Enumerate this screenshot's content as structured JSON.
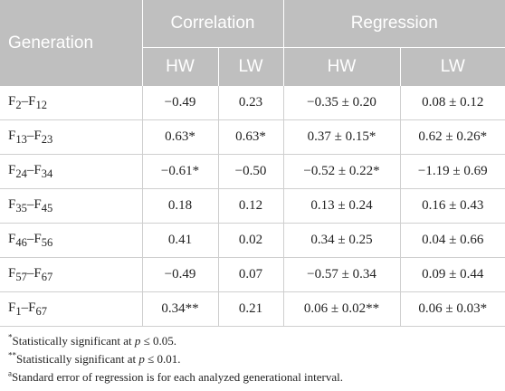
{
  "headers": {
    "generation": "Generation",
    "correlation": "Correlation",
    "regression": "Regression",
    "sub": [
      "HW",
      "LW",
      "HW",
      "LW"
    ]
  },
  "rows": [
    {
      "gen_base1": "F",
      "gen_sub1": "2",
      "dash": "–",
      "gen_base2": "F",
      "gen_sub2": "12",
      "cells": [
        "−0.49",
        "0.23",
        "−0.35 ± 0.20",
        "0.08 ± 0.12"
      ]
    },
    {
      "gen_base1": "F",
      "gen_sub1": "13",
      "dash": "–",
      "gen_base2": "F",
      "gen_sub2": "23",
      "cells": [
        "0.63*",
        "0.63*",
        "0.37 ± 0.15*",
        "0.62 ± 0.26*"
      ]
    },
    {
      "gen_base1": "F",
      "gen_sub1": "24",
      "dash": "–",
      "gen_base2": "F",
      "gen_sub2": "34",
      "cells": [
        "−0.61*",
        "−0.50",
        "−0.52 ± 0.22*",
        "−1.19 ± 0.69"
      ]
    },
    {
      "gen_base1": "F",
      "gen_sub1": "35",
      "dash": "–",
      "gen_base2": "F",
      "gen_sub2": "45",
      "cells": [
        "0.18",
        "0.12",
        "0.13 ± 0.24",
        "0.16 ± 0.43"
      ]
    },
    {
      "gen_base1": "F",
      "gen_sub1": "46",
      "dash": "–",
      "gen_base2": "F",
      "gen_sub2": "56",
      "cells": [
        "0.41",
        "0.02",
        "0.34 ± 0.25",
        "0.04 ± 0.66"
      ]
    },
    {
      "gen_base1": "F",
      "gen_sub1": "57",
      "dash": "–",
      "gen_base2": "F",
      "gen_sub2": "67",
      "cells": [
        "−0.49",
        "0.07",
        "−0.57 ± 0.34",
        "0.09 ± 0.44"
      ]
    },
    {
      "gen_base1": "F",
      "gen_sub1": "1",
      "dash": "–",
      "gen_base2": "F",
      "gen_sub2": "67",
      "cells": [
        "0.34**",
        "0.21",
        "0.06 ± 0.02**",
        "0.06 ± 0.03*"
      ]
    }
  ],
  "footnotes": [
    {
      "mark": "*",
      "pre": "Statistically significant at ",
      "var": "p",
      "post": " ≤ 0.05."
    },
    {
      "mark": "**",
      "pre": "Statistically significant at ",
      "var": "p",
      "post": " ≤ 0.01."
    },
    {
      "mark": "a",
      "pre": "Standard error of regression is for each analyzed generational interval.",
      "var": "",
      "post": ""
    }
  ],
  "colors": {
    "header_bg": "#bfbfbf",
    "header_text": "#ffffff",
    "rule": "#cfcfcf"
  }
}
